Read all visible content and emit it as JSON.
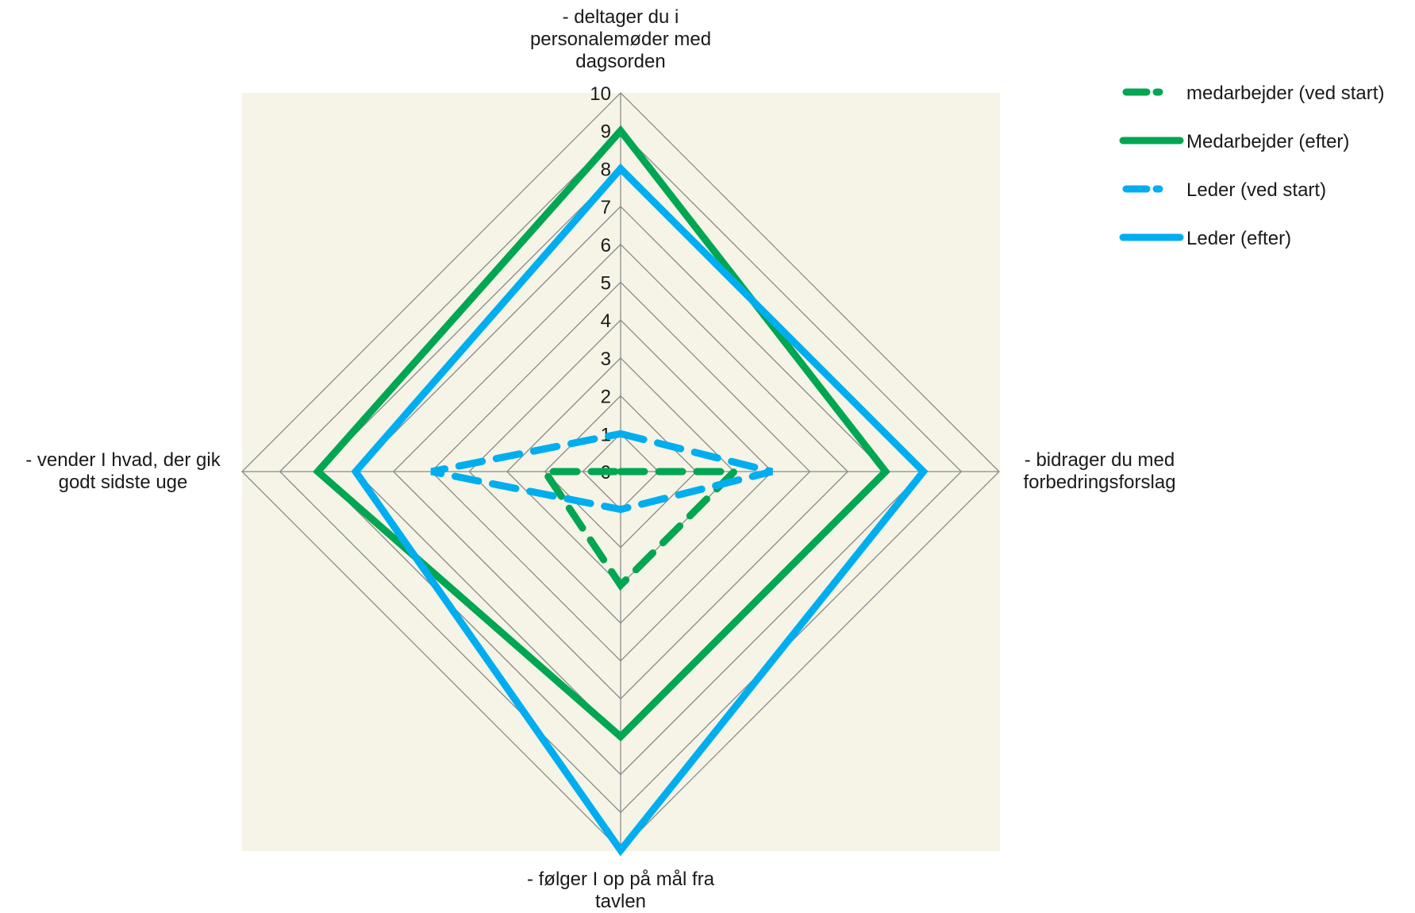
{
  "chart_data": {
    "type": "radar",
    "axes": [
      "- deltager du i\npersonalemøder med\ndagsorden",
      "- bidrager du med\nforbedringsforslag",
      "- følger I op på mål fra\ntavlen",
      "- vender I hvad, der gik\ngodt sidste uge"
    ],
    "range": [
      0,
      10
    ],
    "ticks": [
      0,
      1,
      2,
      3,
      4,
      5,
      6,
      7,
      8,
      9,
      10
    ],
    "tick_labels": [
      "0",
      "1",
      "2",
      "3",
      "4",
      "5",
      "6",
      "7",
      "8",
      "9",
      "10"
    ],
    "series": [
      {
        "name": "medarbejder (ved start)",
        "values": [
          0,
          3,
          3,
          2
        ],
        "color": "#00a651",
        "dashed": true
      },
      {
        "name": "Medarbejder (efter)",
        "values": [
          9,
          7,
          7,
          8
        ],
        "color": "#00a651",
        "dashed": false
      },
      {
        "name": "Leder (ved start)",
        "values": [
          1,
          4,
          1,
          5
        ],
        "color": "#00aeef",
        "dashed": true
      },
      {
        "name": "Leder (efter)",
        "values": [
          8,
          8,
          10,
          7
        ],
        "color": "#00aeef",
        "dashed": false
      }
    ],
    "plot_background": "#f5f4e6",
    "grid_color": "#8a8a8a",
    "legend_position": "top-right"
  }
}
